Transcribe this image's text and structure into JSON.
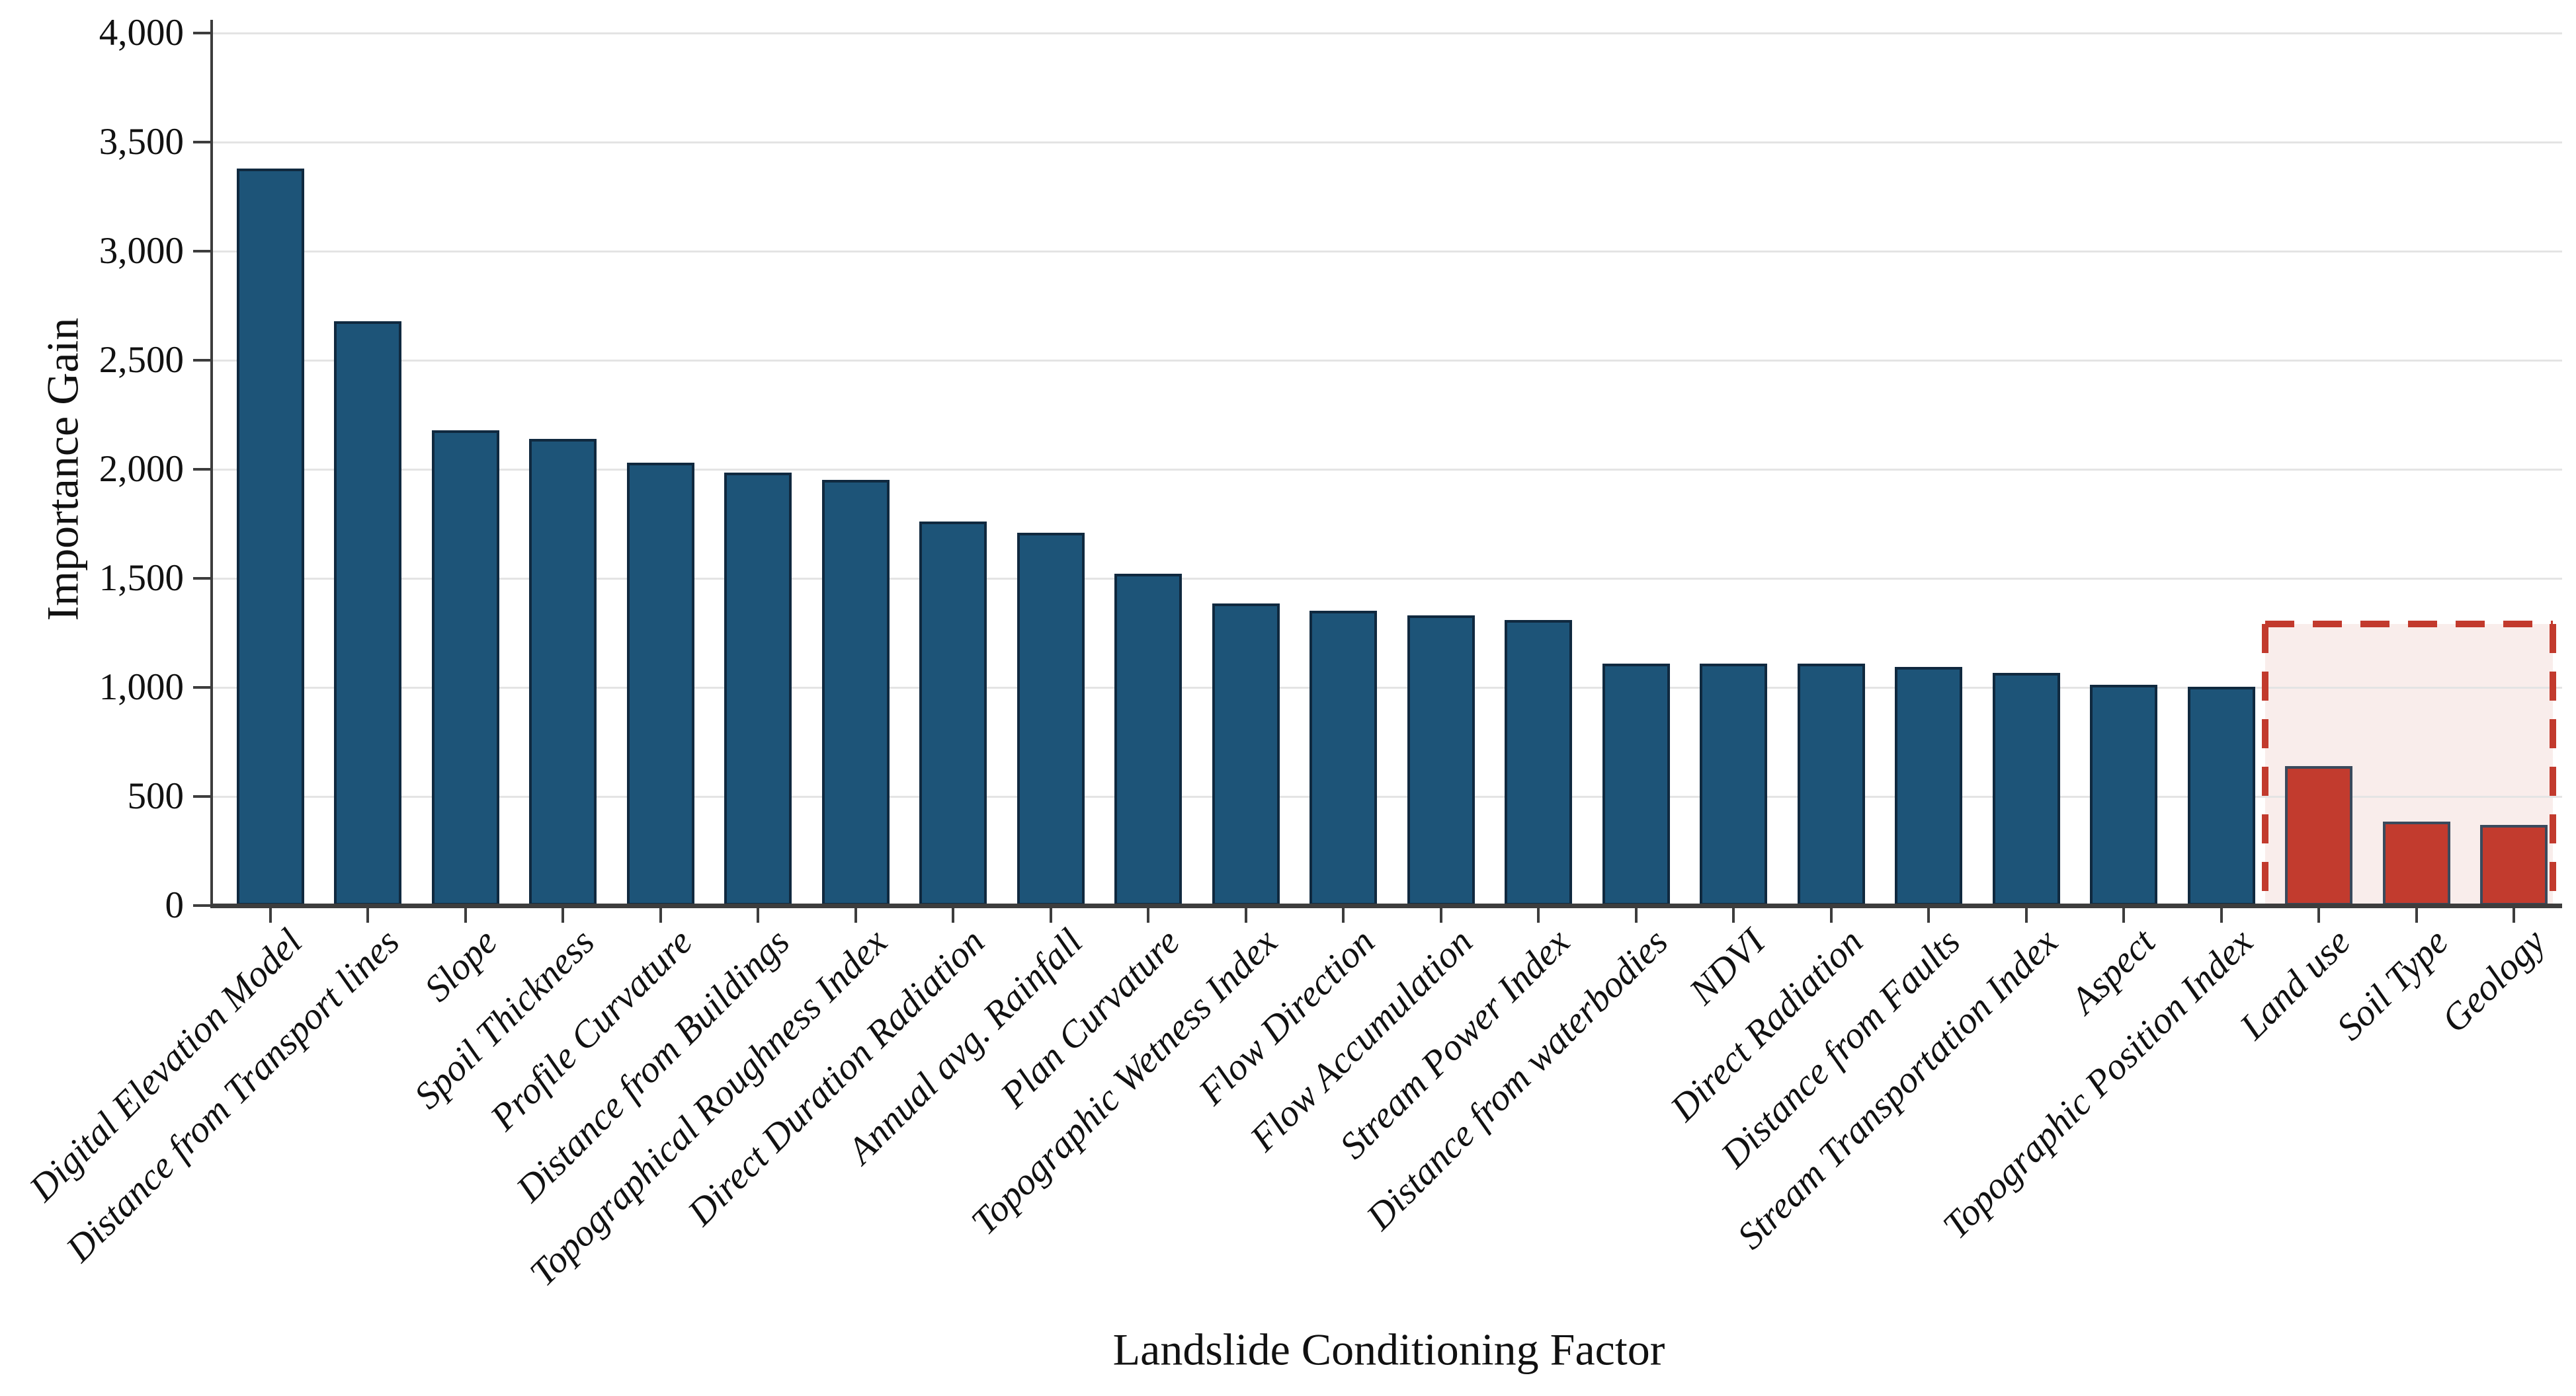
{
  "chart_data": {
    "type": "bar",
    "xlabel": "Landslide Conditioning Factor",
    "ylabel": "Importance Gain",
    "ylim": [
      0,
      4000
    ],
    "grid": true,
    "legend_position": "none",
    "yticks": [
      {
        "value": 0,
        "label": "0"
      },
      {
        "value": 500,
        "label": "500"
      },
      {
        "value": 1000,
        "label": "1,000"
      },
      {
        "value": 1500,
        "label": "1,500"
      },
      {
        "value": 2000,
        "label": "2,000"
      },
      {
        "value": 2500,
        "label": "2,500"
      },
      {
        "value": 3000,
        "label": "3,000"
      },
      {
        "value": 3500,
        "label": "3,500"
      },
      {
        "value": 4000,
        "label": "4,000"
      }
    ],
    "categories": [
      "Digital Elevation Model",
      "Distance from Transport lines",
      "Slope",
      "Spoil Thickness",
      "Profile Curvature",
      "Distance from Buildings",
      "Topographical Roughness Index",
      "Direct Duration Radiation",
      "Annual avg. Rainfall",
      "Plan Curvature",
      "Topographic Wetness Index",
      "Flow Direction",
      "Flow Accumulation",
      "Stream Power Index",
      "Distance from waterbodies",
      "NDVI",
      "Direct Radiation",
      "Distance from Faults",
      "Stream Transportation Index",
      "Aspect",
      "Topographic Position Index",
      "Land use",
      "Soil Type",
      "Geology"
    ],
    "values": [
      3380,
      2680,
      2180,
      2140,
      2030,
      1985,
      1950,
      1760,
      1710,
      1520,
      1385,
      1350,
      1330,
      1310,
      1110,
      1110,
      1110,
      1095,
      1068,
      1012,
      1003,
      640,
      385,
      370
    ],
    "bar_color": "#1d5478",
    "bar_edge_color": "#10293f",
    "highlight": {
      "count": 3,
      "bar_color": "#c23b2e",
      "bar_edge_color": "#3a4a5c",
      "box_border_color": "#c23a2d",
      "box_fill_color": "#f9edeb",
      "box_top_value": 1290
    }
  }
}
